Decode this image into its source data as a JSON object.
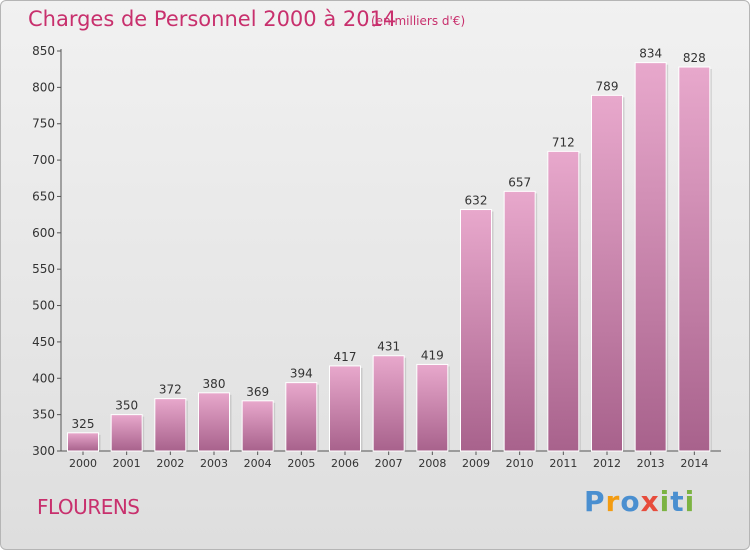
{
  "header": {
    "title": "Charges de Personnel 2000 à 2014",
    "subtitle": "(en milliers d'€)"
  },
  "footer": {
    "commune": "FLOURENS",
    "logo": [
      "P",
      "r",
      "o",
      "x",
      "i",
      "t",
      "i"
    ]
  },
  "colors": {
    "accent": "#c8306d",
    "bar_top": "#e8a8cc",
    "bar_bottom": "#a8628c",
    "logo": [
      "#4a8fd0",
      "#f39c12",
      "#4a8fd0",
      "#e74c3c",
      "#7cb342",
      "#4a8fd0",
      "#7cb342"
    ]
  },
  "chart_data": {
    "type": "bar",
    "title": "Charges de Personnel 2000 à 2014",
    "subtitle": "(en milliers d'€)",
    "categories": [
      "2000",
      "2001",
      "2002",
      "2003",
      "2004",
      "2005",
      "2006",
      "2007",
      "2008",
      "2009",
      "2010",
      "2011",
      "2012",
      "2013",
      "2014"
    ],
    "values": [
      325,
      350,
      372,
      380,
      369,
      394,
      417,
      431,
      419,
      632,
      657,
      712,
      789,
      834,
      828
    ],
    "ylim": [
      300,
      850
    ],
    "yticks": [
      300,
      350,
      400,
      450,
      500,
      550,
      600,
      650,
      700,
      750,
      800,
      850
    ],
    "grid": false,
    "legend": "none"
  }
}
